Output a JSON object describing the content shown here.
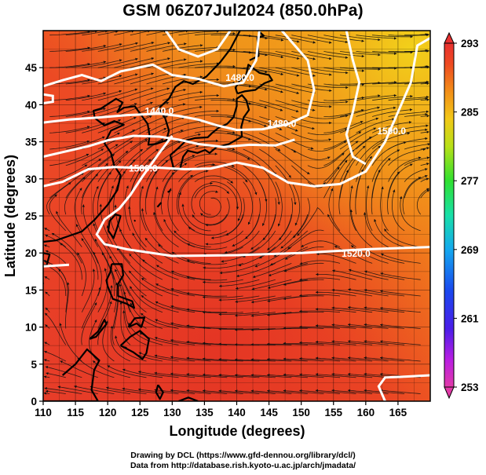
{
  "title": "GSM 06Z07Jul2024 (850.0hPa)",
  "axes": {
    "xlabel": "Longitude (degrees)",
    "ylabel": "Latitude (degrees)",
    "xlim": [
      110,
      170
    ],
    "ylim": [
      0,
      50
    ],
    "xticks": [
      "110",
      "115",
      "120",
      "125",
      "130",
      "135",
      "140",
      "145",
      "150",
      "155",
      "160",
      "165"
    ],
    "yticks": [
      "0",
      "5",
      "10",
      "15",
      "20",
      "25",
      "30",
      "35",
      "40",
      "45"
    ]
  },
  "colorbar": {
    "min": 253,
    "max": 293,
    "ticks": [
      "293",
      "285",
      "277",
      "269",
      "261",
      "253"
    ],
    "colors": [
      "#e23aa8",
      "#c81fe0",
      "#6a1ee6",
      "#1e2ee8",
      "#1a60ee",
      "#14a8ee",
      "#10d8d8",
      "#18e8a0",
      "#1ee050",
      "#4ae020",
      "#a8e018",
      "#e8e018",
      "#f4c018",
      "#f49a18",
      "#f27018",
      "#ee4a20",
      "#e83028"
    ]
  },
  "contour_labels": [
    {
      "text": "1480.0",
      "lon": 140.5,
      "lat": 43.2
    },
    {
      "text": "1440.0",
      "lon": 128.0,
      "lat": 38.7
    },
    {
      "text": "1480.0",
      "lon": 147.0,
      "lat": 37.0
    },
    {
      "text": "1520.0",
      "lon": 158.5,
      "lat": 19.5
    },
    {
      "text": "1500.0",
      "lon": 125.5,
      "lat": 31.0
    },
    {
      "text": "1500.0",
      "lon": 164.0,
      "lat": 36.0
    }
  ],
  "credit": {
    "line1": "Drawing by DCL (https://www.gfd-dennou.org/library/dcl/)",
    "line2": "Data from http://database.rish.kyoto-u.ac.jp/arch/jmadata/"
  }
}
